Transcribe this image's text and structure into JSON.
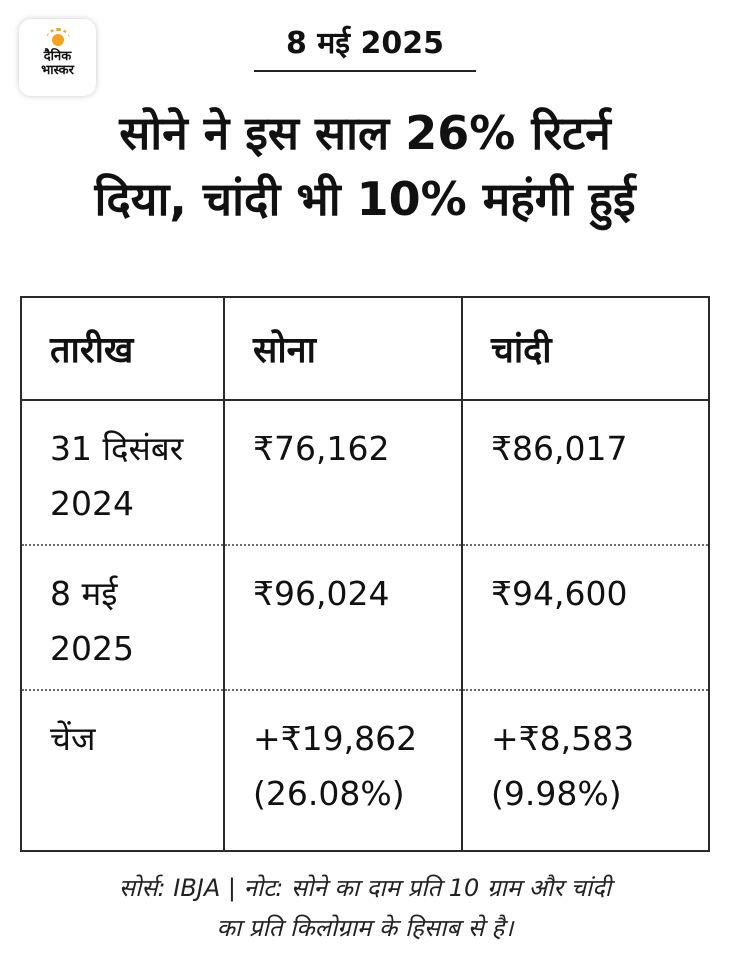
{
  "brand": {
    "logo_line1": "दैनिक",
    "logo_line2": "भास्कर",
    "accent": "#f4a31a"
  },
  "header": {
    "date": "8 मई 2025",
    "headline_line1": "सोने ने इस साल 26% रिटर्न",
    "headline_line2": "दिया, चांदी भी 10% महंगी हुई"
  },
  "table": {
    "columns": [
      "तारीख",
      "सोना",
      "चांदी"
    ],
    "rows": [
      {
        "date_line1": "31 दिसंबर",
        "date_line2": "2024",
        "gold_line1": "₹76,162",
        "gold_line2": "",
        "silver_line1": "₹86,017",
        "silver_line2": ""
      },
      {
        "date_line1": "8 मई",
        "date_line2": "2025",
        "gold_line1": "₹96,024",
        "gold_line2": "",
        "silver_line1": "₹94,600",
        "silver_line2": ""
      },
      {
        "date_line1": "चेंज",
        "date_line2": "",
        "gold_line1": "+₹19,862",
        "gold_line2": "(26.08%)",
        "silver_line1": "+₹8,583",
        "silver_line2": "(9.98%)"
      }
    ]
  },
  "footnote": {
    "line1": "सोर्स: IBJA | नोट: सोने का दाम प्रति 10 ग्राम और चांदी",
    "line2": "का प्रति किलोग्राम के हिसाब से है।"
  }
}
